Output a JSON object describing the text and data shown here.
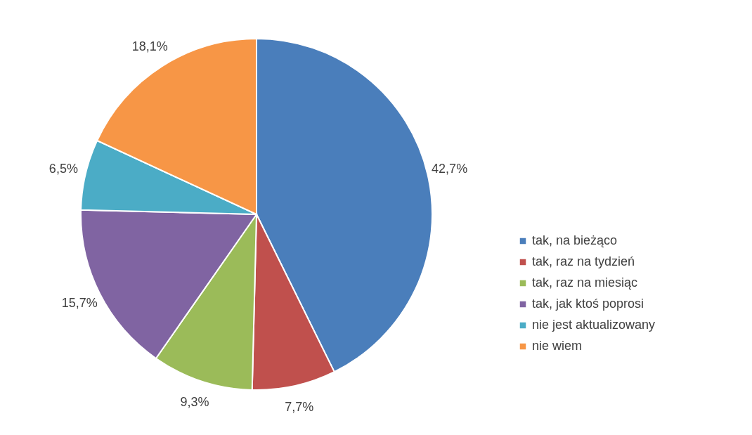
{
  "chart_data": {
    "type": "pie",
    "categories": [
      "tak, na bieżąco",
      "tak, raz na tydzień",
      "tak, raz na miesiąc",
      "tak, jak ktoś poprosi",
      "nie jest aktualizowany",
      "nie wiem"
    ],
    "values": [
      42.7,
      7.7,
      9.3,
      15.7,
      6.5,
      18.1
    ],
    "colors": [
      "#4a7ebb",
      "#c0504d",
      "#9bbb59",
      "#8064a2",
      "#4bacc6",
      "#f79646"
    ],
    "value_labels": [
      "42,7%",
      "7,7%",
      "9,3%",
      "15,7%",
      "6,5%",
      "18,1%"
    ],
    "legend": "right"
  }
}
